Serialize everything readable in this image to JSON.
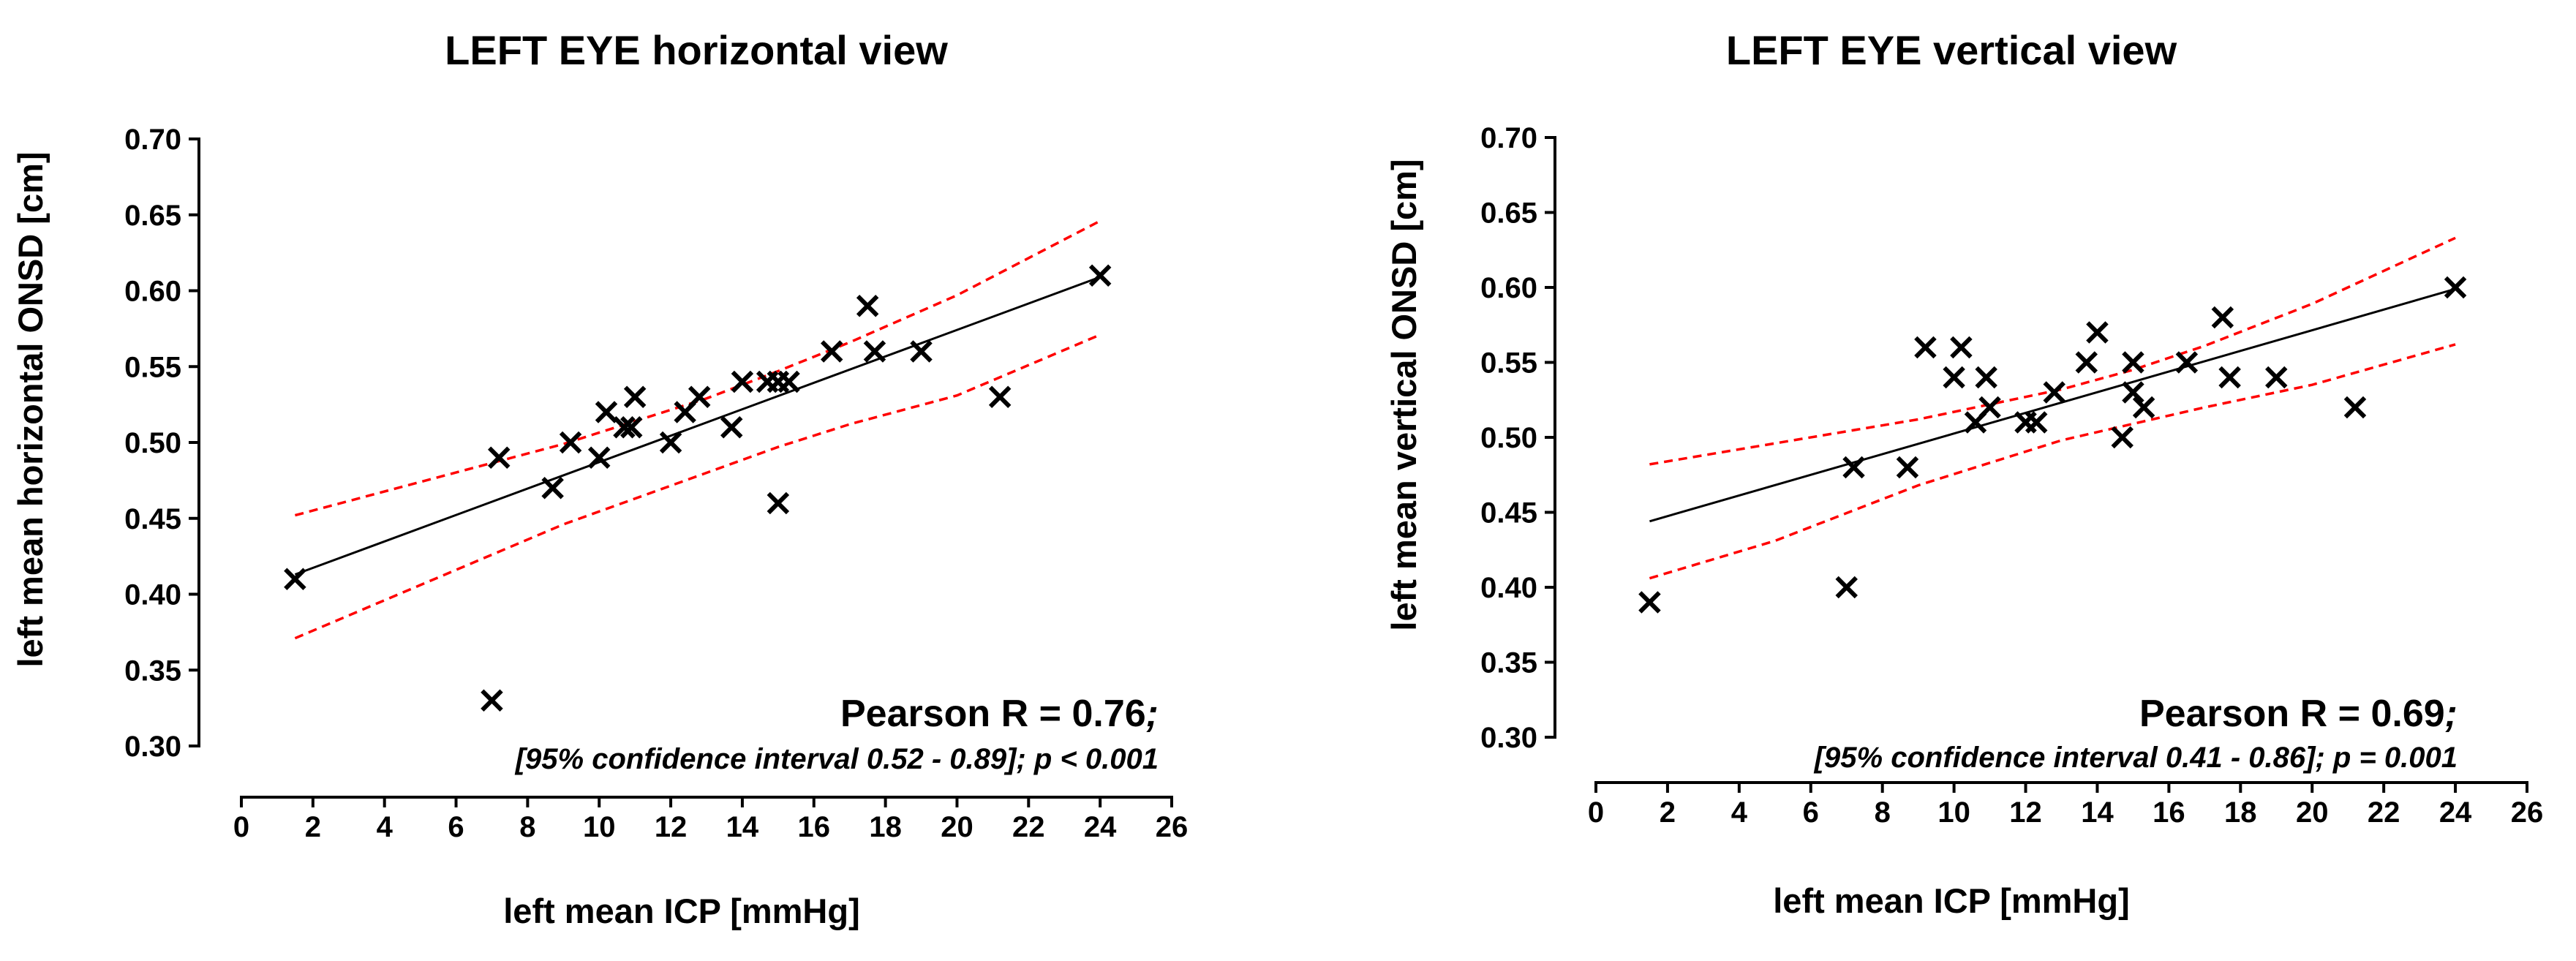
{
  "chart_data": [
    {
      "type": "scatter",
      "title": "LEFT EYE horizontal view",
      "xlabel": "left mean ICP [mmHg]",
      "ylabel": "left mean horizontal ONSD  [cm]",
      "xlim": [
        0,
        26
      ],
      "ylim": [
        0.3,
        0.7
      ],
      "xticks": [
        "0",
        "2",
        "4",
        "6",
        "8",
        "10",
        "12",
        "14",
        "16",
        "18",
        "20",
        "22",
        "24",
        "26"
      ],
      "yticks": [
        "0.30",
        "0.35",
        "0.40",
        "0.45",
        "0.50",
        "0.55",
        "0.60",
        "0.65",
        "0.70"
      ],
      "points": [
        [
          1.5,
          0.41
        ],
        [
          7.0,
          0.33
        ],
        [
          7.2,
          0.49
        ],
        [
          8.7,
          0.47
        ],
        [
          9.2,
          0.5
        ],
        [
          10.0,
          0.49
        ],
        [
          10.2,
          0.52
        ],
        [
          10.7,
          0.51
        ],
        [
          10.9,
          0.51
        ],
        [
          11.0,
          0.53
        ],
        [
          12.0,
          0.5
        ],
        [
          12.4,
          0.52
        ],
        [
          12.8,
          0.53
        ],
        [
          13.7,
          0.51
        ],
        [
          14.0,
          0.54
        ],
        [
          14.7,
          0.54
        ],
        [
          15.0,
          0.46
        ],
        [
          15.0,
          0.54
        ],
        [
          15.3,
          0.54
        ],
        [
          16.5,
          0.56
        ],
        [
          17.5,
          0.59
        ],
        [
          17.7,
          0.56
        ],
        [
          19.0,
          0.56
        ],
        [
          21.2,
          0.53
        ],
        [
          24.0,
          0.61
        ]
      ],
      "fit_line": {
        "x": [
          1.5,
          24.0
        ],
        "y": [
          0.413,
          0.609
        ]
      },
      "confidence_band": {
        "x": [
          1.5,
          5,
          9,
          13,
          15,
          17,
          20,
          24
        ],
        "upper": [
          0.452,
          0.474,
          0.499,
          0.529,
          0.547,
          0.566,
          0.597,
          0.646
        ],
        "lower": [
          0.371,
          0.406,
          0.446,
          0.48,
          0.497,
          0.512,
          0.531,
          0.571
        ]
      },
      "annotation_main": "Pearson R = 0.76",
      "annotation_semicolon": ";",
      "annotation_ci": "[95% confidence interval 0.52 - 0.89]; p < 0.001",
      "colors": {
        "points": "#000000",
        "fit": "#000000",
        "band": "#ff0000"
      }
    },
    {
      "type": "scatter",
      "title": "LEFT EYE vertical view",
      "xlabel": "left mean ICP [mmHg]",
      "ylabel": "left mean vertical ONSD  [cm]",
      "xlim": [
        0,
        26
      ],
      "ylim": [
        0.3,
        0.7
      ],
      "xticks": [
        "0",
        "2",
        "4",
        "6",
        "8",
        "10",
        "12",
        "14",
        "16",
        "18",
        "20",
        "22",
        "24",
        "26"
      ],
      "yticks": [
        "0.30",
        "0.35",
        "0.40",
        "0.45",
        "0.50",
        "0.55",
        "0.60",
        "0.65",
        "0.70"
      ],
      "points": [
        [
          1.5,
          0.39
        ],
        [
          7.0,
          0.4
        ],
        [
          7.2,
          0.48
        ],
        [
          8.7,
          0.48
        ],
        [
          9.2,
          0.56
        ],
        [
          10.0,
          0.54
        ],
        [
          10.2,
          0.56
        ],
        [
          10.6,
          0.51
        ],
        [
          10.9,
          0.54
        ],
        [
          11.0,
          0.52
        ],
        [
          12.0,
          0.51
        ],
        [
          12.3,
          0.51
        ],
        [
          12.8,
          0.53
        ],
        [
          13.7,
          0.55
        ],
        [
          14.0,
          0.57
        ],
        [
          14.7,
          0.5
        ],
        [
          15.0,
          0.53
        ],
        [
          15.0,
          0.55
        ],
        [
          15.3,
          0.52
        ],
        [
          16.5,
          0.55
        ],
        [
          17.5,
          0.58
        ],
        [
          17.7,
          0.54
        ],
        [
          19.0,
          0.54
        ],
        [
          21.2,
          0.52
        ],
        [
          24.0,
          0.6
        ]
      ],
      "fit_line": {
        "x": [
          1.5,
          24.0
        ],
        "y": [
          0.444,
          0.599
        ]
      },
      "confidence_band": {
        "x": [
          1.5,
          5,
          9,
          13,
          15,
          17,
          20,
          24
        ],
        "upper": [
          0.482,
          0.496,
          0.512,
          0.532,
          0.545,
          0.561,
          0.589,
          0.633
        ],
        "lower": [
          0.406,
          0.431,
          0.468,
          0.498,
          0.509,
          0.52,
          0.535,
          0.562
        ]
      },
      "annotation_main": "Pearson R = 0.69",
      "annotation_semicolon": ";",
      "annotation_ci": "[95% confidence interval 0.41 - 0.86]; p = 0.001",
      "colors": {
        "points": "#000000",
        "fit": "#000000",
        "band": "#ff0000"
      }
    }
  ]
}
